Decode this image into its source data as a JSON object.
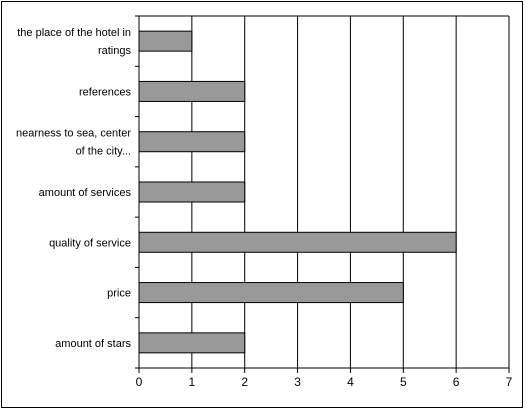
{
  "chart_data": {
    "type": "bar",
    "orientation": "horizontal",
    "categories": [
      "the place of the hotel in ratings",
      "references",
      "nearness to sea, center of the city...",
      "amount of services",
      "quality of service",
      "price",
      "amount of stars"
    ],
    "category_label_lines": [
      [
        "the place of the hotel in",
        "ratings"
      ],
      [
        "references"
      ],
      [
        "nearness to sea, center",
        "of the city..."
      ],
      [
        "amount of services"
      ],
      [
        "quality of service"
      ],
      [
        "price"
      ],
      [
        "amount of stars"
      ]
    ],
    "values": [
      1,
      2,
      2,
      2,
      6,
      5,
      2
    ],
    "x_ticks": [
      "0",
      "1",
      "2",
      "3",
      "4",
      "5",
      "6",
      "7"
    ],
    "xlim": [
      0,
      7
    ],
    "grid": true,
    "legend": false,
    "bar_color": "#999999",
    "title": "",
    "xlabel": "",
    "ylabel": ""
  }
}
